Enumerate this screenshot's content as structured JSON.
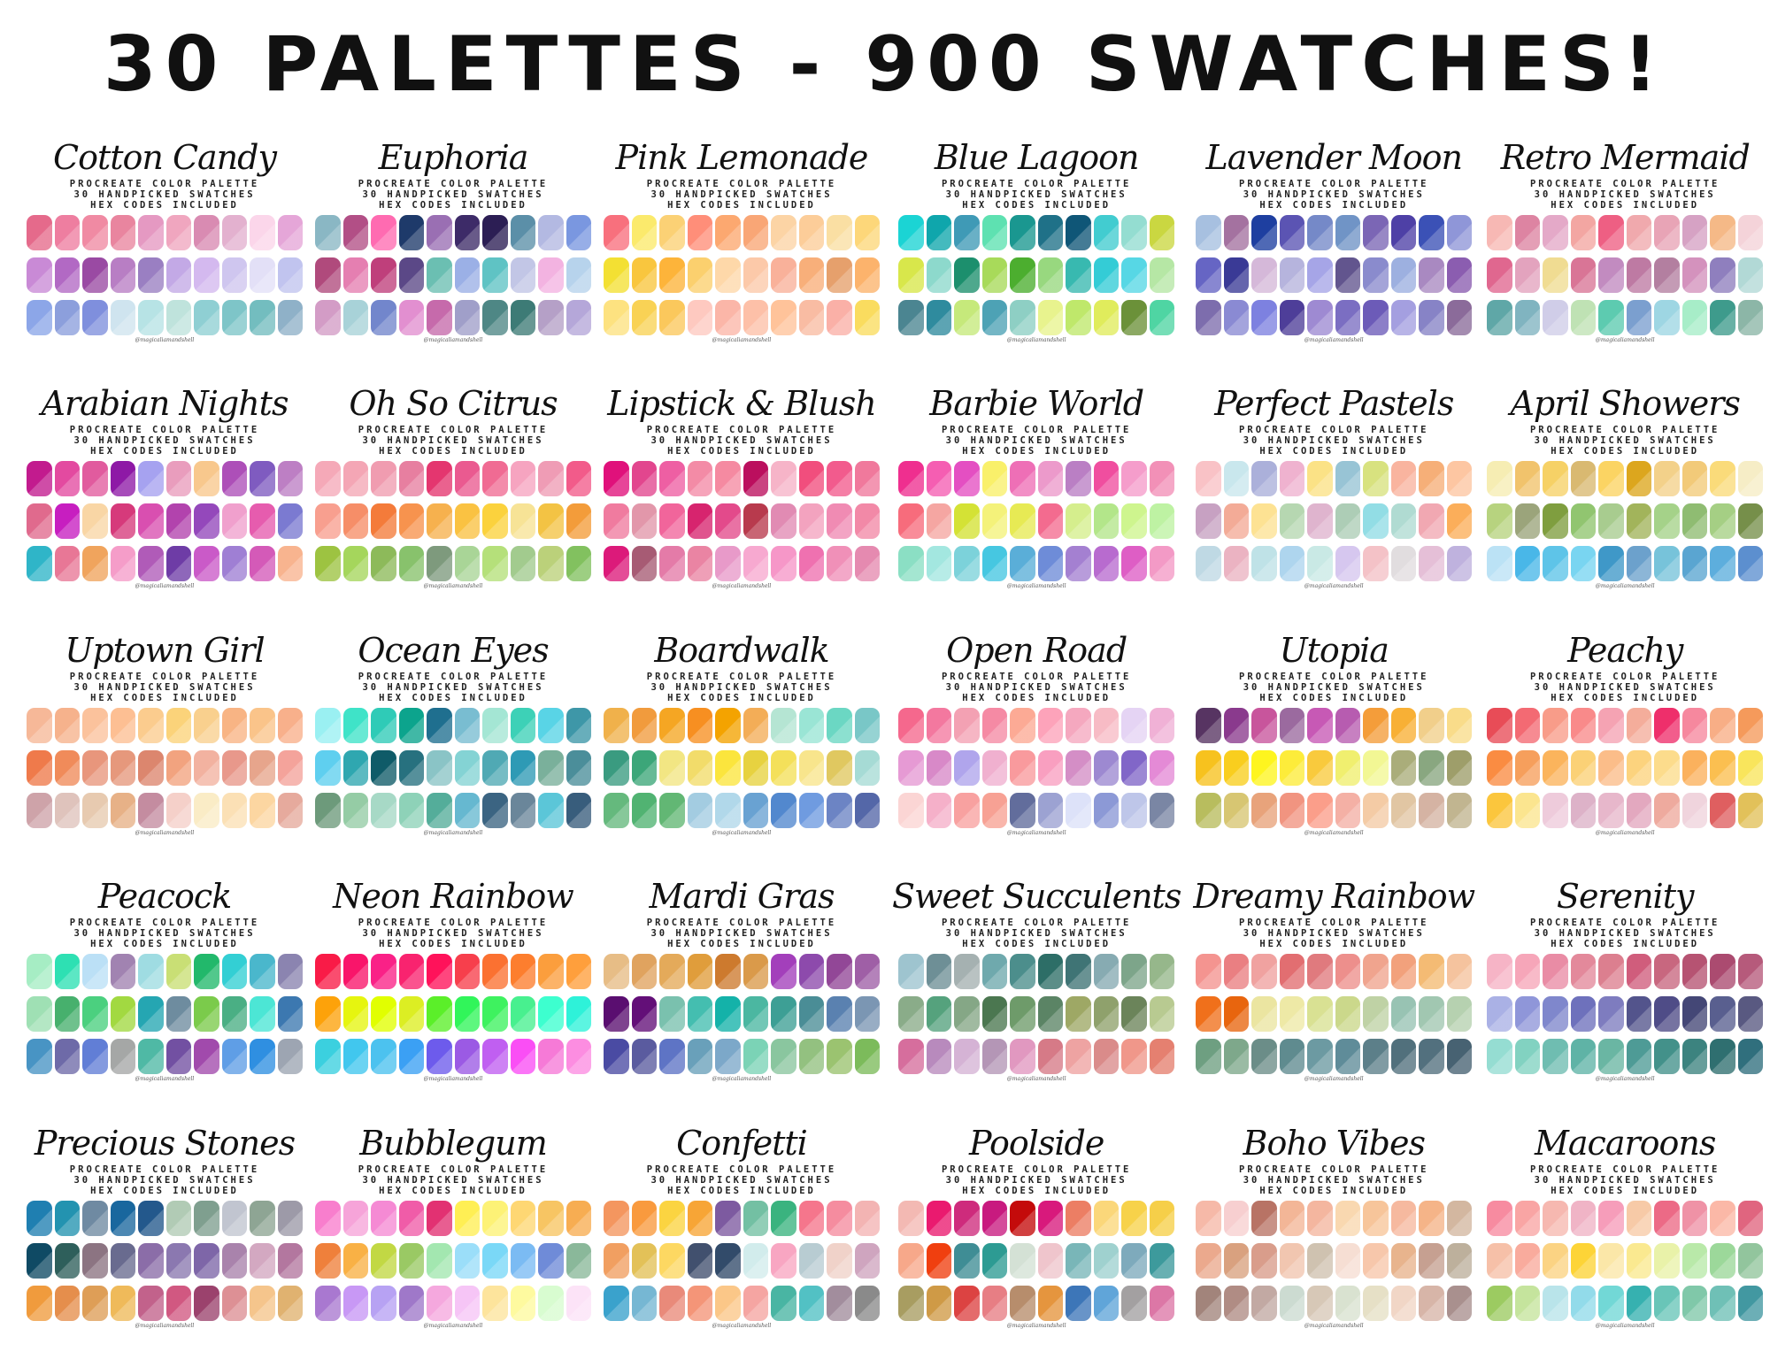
{
  "title": "30 PALETTES - 900 SWATCHES!",
  "subtitle_lines": [
    "PROCREATE COLOR PALETTE",
    "30 HANDPICKED SWATCHES",
    "HEX CODES INCLUDED"
  ],
  "credit": "@magicaliamandshell",
  "palettes": [
    {
      "name": "Cotton Candy",
      "colors": [
        "#e56a8b",
        "#ee7ea0",
        "#f08aa3",
        "#e9859f",
        "#e599c2",
        "#f0a6bf",
        "#d98bb2",
        "#e3b1cf",
        "#fbd6ea",
        "#e5a6d8",
        "#c98ad6",
        "#b269c4",
        "#9a4aa3",
        "#b87ec4",
        "#9a7fc2",
        "#c3a9e6",
        "#d4b9ef",
        "#cfc6ef",
        "#e3e0f7",
        "#c1c4ef",
        "#8ca6e8",
        "#8c9fdc",
        "#7f8fdd",
        "#cfe4ef",
        "#b7e3e5",
        "#bfe3dc",
        "#8fcfd3",
        "#7ec5c8",
        "#73bdbf",
        "#8fb1c8"
      ]
    },
    {
      "name": "Euphoria",
      "colors": [
        "#8ab7c4",
        "#b24f86",
        "#ff6bb1",
        "#1e3a6a",
        "#9a6fb3",
        "#3d2b68",
        "#2c1e54",
        "#5b8fa8",
        "#b3b9e2",
        "#7a97e0",
        "#b04a7c",
        "#e57fb1",
        "#bf3f7b",
        "#5b4887",
        "#6bbfb2",
        "#9bb0e6",
        "#5fc3c4",
        "#c2c6e6",
        "#f3b3e1",
        "#b7d3ec",
        "#d39cc6",
        "#a8d2d8",
        "#7286cc",
        "#e28fd0",
        "#c66aab",
        "#a09fc9",
        "#4e8785",
        "#3d7b76",
        "#b5a0c7",
        "#b5a7d9"
      ]
    },
    {
      "name": "Pink Lemonade",
      "colors": [
        "#f8707d",
        "#fbea6c",
        "#fbd175",
        "#ff8e79",
        "#fca870",
        "#f9a676",
        "#fcd4a5",
        "#fccd99",
        "#fadfa3",
        "#fdd77a",
        "#f3e033",
        "#f9c63e",
        "#fdb43a",
        "#fbd06e",
        "#fed8a9",
        "#fcc9a9",
        "#f9b19a",
        "#f8af7a",
        "#e6a06c",
        "#fcb36c",
        "#fde280",
        "#f9d255",
        "#fbc85c",
        "#fec9c0",
        "#fbb6a8",
        "#fdc0a8",
        "#ffc39a",
        "#f9bca3",
        "#fab0a7",
        "#fadc5f"
      ]
    },
    {
      "name": "Blue Lagoon",
      "colors": [
        "#1bd4d4",
        "#0fa6ac",
        "#3f9ab6",
        "#5ee1b1",
        "#1a9790",
        "#1f7188",
        "#0f5677",
        "#42ccd0",
        "#94ddd1",
        "#cad741",
        "#d8e74b",
        "#8dd9cc",
        "#1c8f6d",
        "#a8da5a",
        "#4cae2f",
        "#98d87f",
        "#38b9b0",
        "#34ccd6",
        "#57d7e5",
        "#b6e7a5",
        "#4b8591",
        "#2f8b9e",
        "#c6e97b",
        "#4da2b5",
        "#8ecfc4",
        "#e8f38e",
        "#bfe86b",
        "#e0ec5c",
        "#6b9139",
        "#4fd5a3"
      ]
    },
    {
      "name": "Lavender Moon",
      "colors": [
        "#a7c0e0",
        "#a472a0",
        "#1e3fa0",
        "#5b54b3",
        "#7589c8",
        "#7094c6",
        "#7b66b5",
        "#4e40a6",
        "#3b51b6",
        "#8f96d8",
        "#6665c4",
        "#3a3a96",
        "#d5b8d9",
        "#b6b4dd",
        "#a6a5e7",
        "#62558e",
        "#8a8bcd",
        "#9db0e0",
        "#a989c1",
        "#8b5db0",
        "#7d6dad",
        "#8a8ad3",
        "#7d81e0",
        "#4e3e99",
        "#9e8ad2",
        "#7b6ec2",
        "#6c5bb8",
        "#a49fe0",
        "#8783c6",
        "#8b6b9a"
      ]
    },
    {
      "name": "Retro Mermaid",
      "colors": [
        "#f7b8b4",
        "#dd84a2",
        "#e4a9c8",
        "#f3a6a2",
        "#ee5f83",
        "#f0a9ad",
        "#e8a4b6",
        "#d6a2c4",
        "#f5b987",
        "#f4d3d9",
        "#e0678f",
        "#e3a3be",
        "#f0dc92",
        "#d97596",
        "#c28bc0",
        "#be7aa3",
        "#b37fa0",
        "#d492bd",
        "#8f7fbe",
        "#b2d9d6",
        "#5fa7a7",
        "#80b4c0",
        "#d0cde8",
        "#bfe2b4",
        "#5dcbb0",
        "#7b9fcf",
        "#9ed6e3",
        "#a7edc8",
        "#3e9b8c",
        "#8cb6a7"
      ]
    },
    {
      "name": "Arabian Nights",
      "colors": [
        "#c21b8e",
        "#e34aa0",
        "#e15b9e",
        "#8e19a6",
        "#a6a2f0",
        "#e99dbd",
        "#f8c88d",
        "#ad4fb8",
        "#7f5bc0",
        "#bd7fc4",
        "#e06a8d",
        "#c71ec0",
        "#f9d6a5",
        "#d63a7b",
        "#d94fb0",
        "#b243ad",
        "#9448bb",
        "#f0a0cd",
        "#e65cae",
        "#7b7ad1",
        "#2fb5c8",
        "#e87796",
        "#f0a45d",
        "#f59dc9",
        "#b05bb8",
        "#6e3ca6",
        "#ca5ac8",
        "#9f7fd4",
        "#d45ab8",
        "#f8b48f"
      ]
    },
    {
      "name": "Oh So Citrus",
      "colors": [
        "#f5a9b8",
        "#f4a6b5",
        "#f09cb0",
        "#e77fa0",
        "#e4366f",
        "#ea5a90",
        "#f06b93",
        "#f6a4c0",
        "#ef9cb5",
        "#f25b8a",
        "#f89f8f",
        "#f68e68",
        "#f47b3a",
        "#f7934e",
        "#f6b14e",
        "#fac242",
        "#fbd23d",
        "#f7e396",
        "#f3c344",
        "#f39c3a",
        "#9dc341",
        "#a5d65c",
        "#8dba5a",
        "#88c26c",
        "#7e9a7d",
        "#a9d597",
        "#b5e07a",
        "#a2cb8e",
        "#bbd17a",
        "#82c15f"
      ]
    },
    {
      "name": "Lipstick & Blush",
      "colors": [
        "#e0117b",
        "#e2468e",
        "#ee5fa3",
        "#f38ba6",
        "#f58aa1",
        "#bb0f5e",
        "#f6b4c8",
        "#f14e7d",
        "#f25b8d",
        "#f0799c",
        "#f07b9f",
        "#e297aa",
        "#f1659b",
        "#d7246e",
        "#e34a8b",
        "#b83a4d",
        "#e18bb3",
        "#f3a3bf",
        "#f08bb3",
        "#f289a7",
        "#dc1a7a",
        "#a75b74",
        "#e47ba8",
        "#ea84a3",
        "#e89ac9",
        "#f7a9d0",
        "#f697c8",
        "#ef71b0",
        "#f090b8",
        "#e58ab0"
      ]
    },
    {
      "name": "Barbie World",
      "colors": [
        "#ef2f8f",
        "#f55eb2",
        "#e44fc2",
        "#f9f06a",
        "#ee6fb6",
        "#ec9acb",
        "#ba7fc4",
        "#f04e9f",
        "#f59dcb",
        "#f290b7",
        "#f76c7c",
        "#f5a6a2",
        "#d4e235",
        "#f4f27a",
        "#e7ea54",
        "#f36b8f",
        "#d5ee8d",
        "#b3e68a",
        "#cef58e",
        "#bef2a3",
        "#8bdfc4",
        "#a3e7e0",
        "#7cd2da",
        "#46c7e1",
        "#5aaed8",
        "#6e8cd8",
        "#a480d1",
        "#b86bcf",
        "#de5ec5",
        "#f39ac6"
      ]
    },
    {
      "name": "Perfect Pastels",
      "colors": [
        "#f9c2c6",
        "#c9e7ed",
        "#abb0da",
        "#efb2cf",
        "#fbe286",
        "#98c4d5",
        "#d8e27f",
        "#f9b49f",
        "#f6af78",
        "#fdc6a2",
        "#c7a1c2",
        "#f3ab97",
        "#fde293",
        "#b6d7b1",
        "#dfb4ce",
        "#adcdb6",
        "#92dde5",
        "#b0dbd2",
        "#f1a8b2",
        "#fbae5a",
        "#bfd9e4",
        "#ebb3c2",
        "#bfe2e7",
        "#aed5ee",
        "#c9e9e5",
        "#d6c7ef",
        "#f4c2c7",
        "#e1dddf",
        "#e5bfd7",
        "#bfb2de"
      ]
    },
    {
      "name": "April Showers",
      "colors": [
        "#f6edb3",
        "#f1c36c",
        "#f6d166",
        "#d9b971",
        "#fbd463",
        "#dca61e",
        "#f3d18a",
        "#f2ca79",
        "#fadb7a",
        "#f6edc6",
        "#b7d37f",
        "#9ba47b",
        "#7f9e3f",
        "#91c570",
        "#a8cc8f",
        "#a2b45b",
        "#a5d289",
        "#8fbc72",
        "#a5cf84",
        "#768f4a",
        "#bbe2f5",
        "#49b7e8",
        "#5ec4e8",
        "#79d5f1",
        "#3f98c8",
        "#6ca1cc",
        "#77c3da",
        "#5aa5d1",
        "#5daedd",
        "#5c8fcf"
      ]
    },
    {
      "name": "Uptown Girl",
      "colors": [
        "#f6b898",
        "#f6b28c",
        "#fbc29c",
        "#fdbf93",
        "#fbcc8e",
        "#fbd37a",
        "#f9d08e",
        "#f8b484",
        "#fac48a",
        "#f8b08b",
        "#ef7a4b",
        "#f08b5a",
        "#e8967c",
        "#e6987c",
        "#dc866e",
        "#f2a37f",
        "#f2b2a0",
        "#e8988b",
        "#e7a58c",
        "#f4a39b",
        "#cea3a9",
        "#dfc3bc",
        "#e7cab0",
        "#e7b187",
        "#c48ca0",
        "#f5d0c9",
        "#faecc6",
        "#fbe0b5",
        "#fcd6a1",
        "#e6aa9d"
      ]
    },
    {
      "name": "Ocean Eyes",
      "colors": [
        "#9af0f2",
        "#3fe3c8",
        "#2fcbb7",
        "#0ca48d",
        "#1f6f8f",
        "#79bdd1",
        "#a4e6d4",
        "#3dd1b7",
        "#59d4e6",
        "#3e97a8",
        "#5fcfef",
        "#2fa7b0",
        "#0f5b68",
        "#27717f",
        "#8ac4c6",
        "#84d3d4",
        "#50a9b4",
        "#2e9ab5",
        "#7ab09b",
        "#4b8e9a",
        "#6d9a7b",
        "#95cca5",
        "#a7d9c6",
        "#8ed2b8",
        "#54ad9a",
        "#66b8d0",
        "#3b6482",
        "#6a869a",
        "#5bc6d8",
        "#385d7c"
      ]
    },
    {
      "name": "Boardwalk",
      "colors": [
        "#f0b14b",
        "#f19b3d",
        "#f5a623",
        "#f78f21",
        "#f4a300",
        "#f3ad57",
        "#b5e5d3",
        "#9ae5d5",
        "#6bd7c3",
        "#79c7c7",
        "#3a9b80",
        "#3ca679",
        "#f2e683",
        "#f2dc6a",
        "#fbe53d",
        "#e7d240",
        "#f4e05a",
        "#f8e58c",
        "#e0c860",
        "#a6dbd5",
        "#65b97d",
        "#51b372",
        "#62b774",
        "#a3cce1",
        "#b1d8ea",
        "#69a2d2",
        "#5288ce",
        "#6f9be0",
        "#6c84c4",
        "#5467a8"
      ]
    },
    {
      "name": "Open Road",
      "colors": [
        "#f5688d",
        "#f3789f",
        "#f3a1b3",
        "#f58aa4",
        "#fcaa95",
        "#fda3ba",
        "#f5a8bf",
        "#f7bbc5",
        "#e5d4f4",
        "#f0b1d6",
        "#e69ad4",
        "#d889c8",
        "#b0a5ec",
        "#f0b0cf",
        "#f99a9d",
        "#f99fc0",
        "#d48ec6",
        "#9d89d1",
        "#8166c8",
        "#e48ad6",
        "#fbd5d4",
        "#f5b0c9",
        "#f8a1a0",
        "#f7a194",
        "#626d9c",
        "#9ca2d2",
        "#dde2f9",
        "#8c99d6",
        "#bec6e9",
        "#7a86a4"
      ]
    },
    {
      "name": "Utopia",
      "colors": [
        "#573462",
        "#8a3a8d",
        "#c8559c",
        "#9b6a9f",
        "#c759b5",
        "#b75cb0",
        "#f49d3a",
        "#f8b035",
        "#f1cf8b",
        "#f9dc8a",
        "#f7c21e",
        "#f9ce1e",
        "#fef51f",
        "#fdec3a",
        "#f9ca3d",
        "#f0ef6f",
        "#f2f794",
        "#aaad7a",
        "#89a780",
        "#9e9e6a",
        "#b8bd5e",
        "#d7c672",
        "#e8a37b",
        "#f19480",
        "#fb9e8a",
        "#f4b0a5",
        "#f4cba5",
        "#e1c6a3",
        "#d5b3a3",
        "#c1b590"
      ]
    },
    {
      "name": "Peachy",
      "colors": [
        "#e84c57",
        "#f36a73",
        "#f89c89",
        "#f98a8a",
        "#f5a3b3",
        "#f4ad9b",
        "#ee2f6b",
        "#f6889e",
        "#f8ae86",
        "#f59a5b",
        "#fa8c42",
        "#f69f5c",
        "#fbb45c",
        "#fbd176",
        "#fbbd89",
        "#fcd37e",
        "#fcdc8c",
        "#fbb15d",
        "#fbbf50",
        "#f9e55c",
        "#fbc63d",
        "#fbe58f",
        "#eecbdb",
        "#ddb2c8",
        "#e7b7cb",
        "#e3a8bf",
        "#eeaa9e",
        "#f0d4dd",
        "#df5f60",
        "#e2c15a"
      ]
    },
    {
      "name": "Peacock",
      "colors": [
        "#a6edc4",
        "#2ee0b3",
        "#bbe0f6",
        "#a183b1",
        "#9fdce2",
        "#c9df75",
        "#22b86b",
        "#33cfd4",
        "#4ab7cc",
        "#8b84b0",
        "#9fe0b4",
        "#47b06d",
        "#4bd07f",
        "#a2d941",
        "#25a6b2",
        "#6e8c9f",
        "#7bcb4b",
        "#4aaf84",
        "#4ce6d5",
        "#3c78b0",
        "#4894c4",
        "#6e6aa8",
        "#617ed6",
        "#a5a7a6",
        "#4fb9a5",
        "#7250a2",
        "#a14aac",
        "#5f9ee6",
        "#2f8fe1",
        "#9da5b2"
      ]
    },
    {
      "name": "Neon Rainbow",
      "colors": [
        "#f91b47",
        "#f9156a",
        "#fa2187",
        "#f9236f",
        "#ff125a",
        "#f73f4c",
        "#fb7131",
        "#fd7e2e",
        "#fb9e3d",
        "#ff9f3c",
        "#fda20a",
        "#e6f50f",
        "#e1ff00",
        "#dcee23",
        "#5bef29",
        "#31f55a",
        "#3ef25f",
        "#48f08f",
        "#3dffcf",
        "#2ef2d9",
        "#3bd0df",
        "#41c7ee",
        "#4cc2ef",
        "#3ba0f4",
        "#6d5bec",
        "#9b5ae4",
        "#c05ff1",
        "#fa4ef5",
        "#f67ad7",
        "#fc8de1"
      ]
    },
    {
      "name": "Mardi Gras",
      "colors": [
        "#e7bd86",
        "#e0a35f",
        "#e4aa5a",
        "#e09d3b",
        "#cd7a2e",
        "#da9a4a",
        "#a33fbb",
        "#8d4aac",
        "#924797",
        "#9f5fa6",
        "#5a0e70",
        "#630f78",
        "#7ac1ae",
        "#44beb0",
        "#14b2a9",
        "#4bb7a1",
        "#3d9f95",
        "#4a8d96",
        "#5a81b0",
        "#7b96b3",
        "#4a4ba3",
        "#5a5b9f",
        "#5e74c5",
        "#69a0ba",
        "#7ca8c9",
        "#7bd3b6",
        "#8ac69f",
        "#93c180",
        "#9bc370",
        "#7cbb5b"
      ]
    },
    {
      "name": "Sweet Succulents",
      "colors": [
        "#9ec4cf",
        "#6e8f96",
        "#a5b1b1",
        "#6fa9ad",
        "#4c8e8c",
        "#2d6e67",
        "#3f7475",
        "#87abb2",
        "#7da58a",
        "#96b78b",
        "#8aac89",
        "#55a27d",
        "#85a786",
        "#4b7750",
        "#6e9b6a",
        "#5b8465",
        "#9ea865",
        "#8fa16c",
        "#6b845a",
        "#b8ca91",
        "#d66e9d",
        "#b88abd",
        "#d5b3d5",
        "#b496b6",
        "#e198c0",
        "#d67a87",
        "#eea3a2",
        "#da8b8a",
        "#f0978a",
        "#e58070"
      ]
    },
    {
      "name": "Dreamy Rainbow",
      "colors": [
        "#f49490",
        "#ea7f82",
        "#f0a2a0",
        "#e26e71",
        "#e07a7e",
        "#ed8f8c",
        "#f0a48e",
        "#f2a17c",
        "#f4bb74",
        "#f5c39e",
        "#f0701b",
        "#e8650e",
        "#ebe5a1",
        "#eee9a6",
        "#d9e193",
        "#cbd88b",
        "#bfd2a5",
        "#98c3b3",
        "#a1c7b1",
        "#b6d1b0",
        "#6e9f81",
        "#7ea88b",
        "#6b8d88",
        "#5f8b8f",
        "#6c9aa2",
        "#5f8c99",
        "#5c7f89",
        "#51707c",
        "#52707e",
        "#476272"
      ]
    },
    {
      "name": "Serenity",
      "colors": [
        "#f6b4c6",
        "#f6a6b9",
        "#e98ca5",
        "#e3899b",
        "#dc7f8f",
        "#d05d7c",
        "#c8677f",
        "#b65372",
        "#ab4b70",
        "#b65a7b",
        "#aab1e5",
        "#8f96d9",
        "#7f87cc",
        "#6e71bc",
        "#7e7cbf",
        "#53548c",
        "#4f4c87",
        "#444776",
        "#595f8f",
        "#595981",
        "#95ddd2",
        "#82d2c1",
        "#6fbdb1",
        "#5fb3a6",
        "#6ab6a3",
        "#4e9b96",
        "#43918a",
        "#3c837f",
        "#2f6f70",
        "#306f7d"
      ]
    },
    {
      "name": "Precious Stones",
      "colors": [
        "#1f7fb1",
        "#2393b0",
        "#6f8aa2",
        "#19679e",
        "#23588c",
        "#b1cbb5",
        "#7f9f8f",
        "#c1c5d0",
        "#8ea594",
        "#9d9aa8",
        "#0f4a64",
        "#2e5f5b",
        "#8c7482",
        "#696b8f",
        "#8b6da8",
        "#8b78b0",
        "#7e66a8",
        "#a983ac",
        "#d3a8c1",
        "#b3779f",
        "#f09b3d",
        "#e58e4c",
        "#de9e57",
        "#efba5a",
        "#c2628b",
        "#d15881",
        "#9b426d",
        "#dd9095",
        "#f5c58c",
        "#e0b270"
      ]
    },
    {
      "name": "Bubblegum",
      "colors": [
        "#f87ecd",
        "#f6a4d9",
        "#f58ad4",
        "#f05ca8",
        "#e23172",
        "#ffef54",
        "#fdf276",
        "#fed773",
        "#f7c563",
        "#f7ad52",
        "#ef803b",
        "#f9b145",
        "#c2d844",
        "#9ac964",
        "#a3e7b0",
        "#9bdef9",
        "#7ad8f7",
        "#7bbbf3",
        "#6f8bd8",
        "#8ab89a",
        "#a978d0",
        "#c898f5",
        "#b7a2f3",
        "#9f78c9",
        "#f5a8de",
        "#f6c5f6",
        "#fde49c",
        "#fefa9f",
        "#d8fcd0",
        "#fce3f7"
      ]
    },
    {
      "name": "Confetti",
      "colors": [
        "#f4965f",
        "#f99a3e",
        "#fbd441",
        "#f7a536",
        "#7d5aa0",
        "#73c0a3",
        "#3ab37f",
        "#f5768c",
        "#f58c9f",
        "#f3b4b3",
        "#f19f61",
        "#e3c158",
        "#fdd862",
        "#41506e",
        "#324b6a",
        "#d2ecec",
        "#f8a6c2",
        "#b8ccd2",
        "#f0d2c9",
        "#cfa5bf",
        "#3aa2cc",
        "#76b7d3",
        "#e98a7a",
        "#f49578",
        "#fbc788",
        "#f5a5a2",
        "#49b5a3",
        "#52c1c4",
        "#a28d9d",
        "#8a8a8a"
      ]
    },
    {
      "name": "Poolside",
      "colors": [
        "#f3b9b3",
        "#ea1a6f",
        "#ce2b7c",
        "#c81a7f",
        "#c40b0b",
        "#d8197c",
        "#ec7e64",
        "#fbd77a",
        "#f7d24a",
        "#f6cf49",
        "#f7a88a",
        "#f03f0f",
        "#3f8d95",
        "#2d9b93",
        "#d4e1d5",
        "#efc5cc",
        "#79b6b8",
        "#9fd1cf",
        "#7eaabc",
        "#3d9a9c",
        "#a89d61",
        "#cf9a46",
        "#dc4342",
        "#e77e84",
        "#b78d6c",
        "#e5953e",
        "#3d76b8",
        "#60a5d9",
        "#a3a0a1",
        "#dc77a6"
      ]
    },
    {
      "name": "Boho Vibes",
      "colors": [
        "#f6b9a8",
        "#f7cfd0",
        "#b87365",
        "#f3b697",
        "#f4b69f",
        "#f9d8b0",
        "#f7c59a",
        "#f6b99f",
        "#f5b488",
        "#d3b7a0",
        "#eba98d",
        "#d9a17f",
        "#d99d8b",
        "#f1c6b0",
        "#cfc2b0",
        "#f6ded3",
        "#f7c7ab",
        "#e8b48d",
        "#c6a091",
        "#bdb09c",
        "#a2847b",
        "#b08c84",
        "#c2a9a3",
        "#ccdbd1",
        "#d7c8b7",
        "#d9e2d0",
        "#e6e0c6",
        "#f1d6c6",
        "#d7b5a8",
        "#a9908e"
      ]
    },
    {
      "name": "Macaroons",
      "colors": [
        "#f78ba0",
        "#f9a5a4",
        "#f6b8b0",
        "#f0b4c6",
        "#f69dba",
        "#f7caa7",
        "#ec6a86",
        "#ef92a6",
        "#fbb8a7",
        "#e0657f",
        "#f6c0a8",
        "#f9ab9d",
        "#fbd383",
        "#fdd437",
        "#fbe7a8",
        "#fae990",
        "#e9f2a9",
        "#b9e9a9",
        "#9cd89a",
        "#92c59d",
        "#9ccb61",
        "#c5e49d",
        "#b9e4ea",
        "#92dbea",
        "#72d8d6",
        "#36b1b0",
        "#69c5b8",
        "#80c8a9",
        "#6fc0b6",
        "#4298a1"
      ]
    }
  ]
}
